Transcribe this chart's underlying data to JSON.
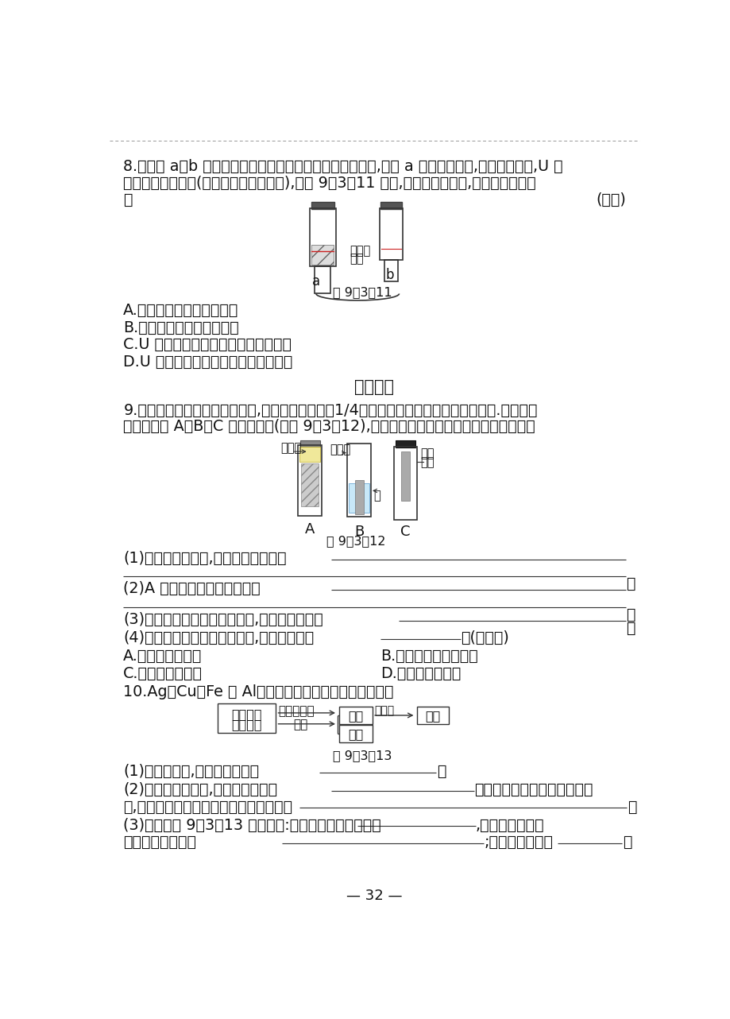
{
  "page_bg": "#ffffff",
  "text_color": "#1a1a1a",
  "title": "拓展提升",
  "page_number": "— 32 —",
  "q8": {
    "number": "8.",
    "text1": "分别向 a、b 两支试管中加入形状和大小完全相同的铁片,再向 a 中加入植物油,均塞上橡皮塞,U 型",
    "text2": "玻璃管内为红墨水(开始时两端液面水平),如图 9－3－11 所示,放置一段时间后,以下说法错误的",
    "text3": "是",
    "bracket": "(　　)",
    "fig_label": "图 9－3－11",
    "tube_label1": "红墨水",
    "tube_label2": "铁片",
    "tube_a": "a",
    "tube_b": "b",
    "optionA": "A.植物油用于隔绝氧气和水",
    "optionB": "B.两支试管中铁片均被腕蚀",
    "optionC": "C.U 型玻璃管两端的液面变为右低左高",
    "optionD": "D.U 型玻璃管两端的液面变为左低右高"
  },
  "q9": {
    "number": "9.",
    "text1": "全世界每年因生锈损失的钓铁,约占世界年产量的1/4。小刚同学想探究钔铁锈蚀的条件.他将干净",
    "text2": "的铁钉放入 A、B、C 三支试管中(见图 9－3－12),定期观察并记录现象。请回答下列问题：",
    "fig_label": "图 9－3－12",
    "tubeA_label": "植物油",
    "tubeB_label": "蔓馏水",
    "tubeC_label1": "干燥",
    "tubeC_label2": "空气",
    "water_label": "水",
    "tubeA": "A",
    "tubeB": "B",
    "tubeC": "C",
    "q1_text": "(1)经过一段时间后,他观察到的现象是",
    "q2_text": "(2)A 试管中放植物油的作用是",
    "q3_text": "(3)通过对铁钉锈蚀条件的探究,他得到的结论是",
    "q4_text": "(4)下列保护金属铁资源的建议,其中正确的是",
    "q4_suffix": "。(填字母)",
    "optionA": "A.防止铁制品腕蚀",
    "optionB": "B.回收利用废旧铁制品",
    "optionC": "C.任意开采铁矿石",
    "optionD": "D.开发金属替代品"
  },
  "q10": {
    "number": "10.",
    "text1": "Ag、Cu、Fe 和 Al是生产或生活中广泛使用的金属。",
    "fig_label": "图 9－3－13",
    "q1_text": "(1)四种金属中,不是銀白色的是",
    "q2_text1": "(2)铁制品容易锈蚀,铁生锈的条件是",
    "q2_text2": "。生锈的废钓铁可回收重新冶",
    "q2_text3": "炼,用一氧化碳还原氧化铁的化学方程式为",
    "q3_text1": "(3)根据如图 9－3－13 所示回答:滤渣中一定有的金属是",
    "q3_text2": ",滤渣与稀盐酸反",
    "q3_text3": "应的化学方程式为",
    "q3_text4": ";滤液中的溶质是"
  }
}
